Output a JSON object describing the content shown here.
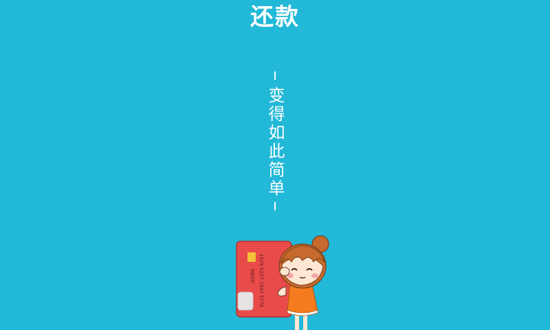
{
  "header": {
    "title": "还款"
  },
  "slogan": {
    "text": "变得如此简单"
  },
  "illustration": {
    "card_number": "1529 5227 1597 5778",
    "card_expiry": "08/20",
    "colors": {
      "background": "#22B8D8",
      "card": "#E94B4B",
      "dress": "#F47C1E",
      "hair": "#C66A2E"
    }
  }
}
